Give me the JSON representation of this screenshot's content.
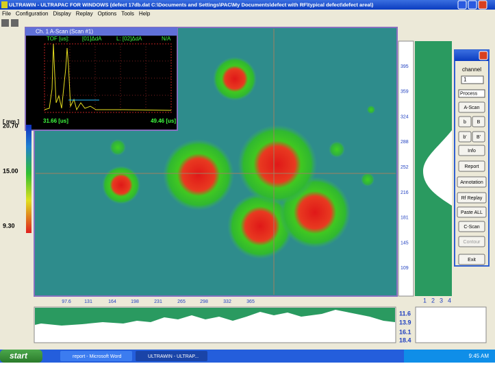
{
  "window": {
    "title": "ULTRAWIN - ULTRAPAC FOR WINDOWS  (defect 17db.dat  C:\\Documents and Settings\\PAC\\My Documents\\defect with RF\\typical defect\\defect area\\)"
  },
  "menu": [
    "File",
    "Configuration",
    "Display",
    "Replay",
    "Options",
    "Tools",
    "Help"
  ],
  "ascan": {
    "title": "Ch. 1 A-Scan (Scan #1)",
    "header": [
      "TOF [us]:",
      "[01]ΔdA",
      "L: [02]ΔdA",
      "N/A"
    ],
    "start_label": "31.66 [us]",
    "end_label": "49.46 [us]"
  },
  "color_scale": {
    "unit": "[ mm ]",
    "labels": [
      "20.70",
      "15.00",
      "9.30"
    ]
  },
  "y_axis": {
    "labels": [
      "395",
      "359",
      "324",
      "288",
      "252",
      "216",
      "181",
      "145",
      "109"
    ]
  },
  "x_axis": {
    "labels": [
      "97.6",
      "131",
      "164",
      "198",
      "231",
      "265",
      "298",
      "332",
      "365"
    ]
  },
  "right_profile": {
    "labels": [
      "1",
      "2",
      "3",
      "4"
    ]
  },
  "bottom_profile": {
    "labels": [
      "11.6",
      "13.9",
      "16.1",
      "18.4"
    ]
  },
  "panel": {
    "channel_label": "channel",
    "channel_value": "1",
    "process": "Process",
    "buttons": [
      "A-Scan",
      "b",
      "B",
      "b'",
      "B'",
      "Info",
      "Report",
      "Annotation",
      "Rf Replay",
      "Paste ALL",
      "C-Scan",
      "Contour",
      "Exit"
    ]
  },
  "taskbar": {
    "start": "start",
    "tasks": [
      "report - Microsoft Word",
      "ULTRAWIN - ULTRAP..."
    ],
    "clock": "9:45 AM"
  }
}
